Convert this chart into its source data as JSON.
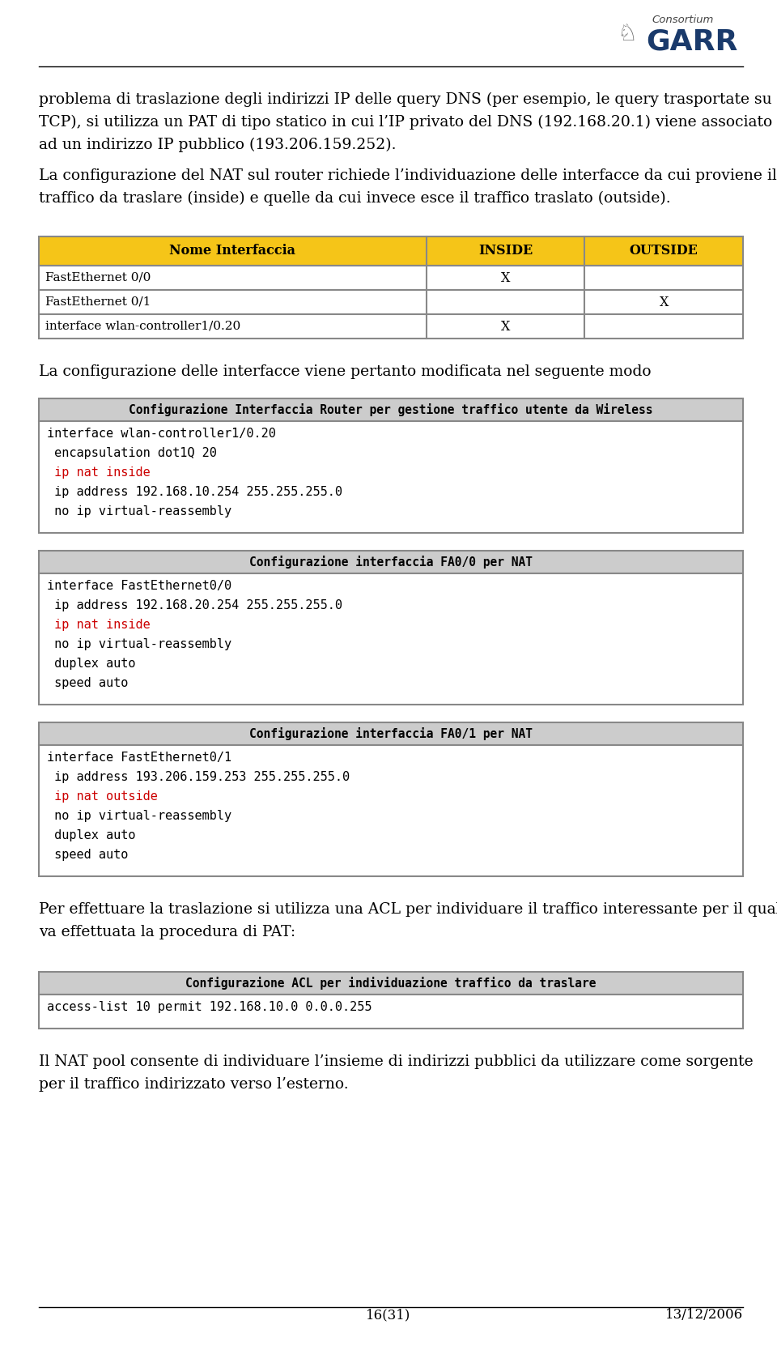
{
  "page_bg": "#ffffff",
  "text_color": "#000000",
  "red_color": "#cc0000",
  "header_bg": "#f5c518",
  "code_header_bg": "#cccccc",
  "body_text_1": "problema di traslazione degli indirizzi IP delle query DNS (per esempio, le query trasportate su TCP), si utilizza un PAT di tipo statico in cui l’IP privato del DNS (192.168.20.1) viene associato ad un indirizzo IP pubblico (193.206.159.252).",
  "body_text_2": "La configurazione del NAT sul router richiede l’individuazione delle interfacce da cui proviene il traffico da traslare (inside) e quelle da cui invece esce il traffico traslato (outside).",
  "table_headers": [
    "Nome Interfaccia",
    "INSIDE",
    "OUTSIDE"
  ],
  "table_rows": [
    [
      "FastEthernet 0/0",
      "X",
      ""
    ],
    [
      "FastEthernet 0/1",
      "",
      "X"
    ],
    [
      "interface wlan-controller1/0.20",
      "X",
      ""
    ]
  ],
  "middle_text": "La configurazione delle interfacce viene pertanto modificata nel seguente modo",
  "code_blocks": [
    {
      "title": "Configurazione Interfaccia Router per gestione traffico utente da Wireless",
      "lines": [
        {
          "text": "interface wlan-controller1/0.20",
          "color": "#000000"
        },
        {
          "text": " encapsulation dot1Q 20",
          "color": "#000000"
        },
        {
          "text": " ip nat inside",
          "color": "#cc0000"
        },
        {
          "text": " ip address 192.168.10.254 255.255.255.0",
          "color": "#000000"
        },
        {
          "text": " no ip virtual-reassembly",
          "color": "#000000"
        }
      ]
    },
    {
      "title": "Configurazione interfaccia FA0/0 per NAT",
      "lines": [
        {
          "text": "interface FastEthernet0/0",
          "color": "#000000"
        },
        {
          "text": " ip address 192.168.20.254 255.255.255.0",
          "color": "#000000"
        },
        {
          "text": " ip nat inside",
          "color": "#cc0000"
        },
        {
          "text": " no ip virtual-reassembly",
          "color": "#000000"
        },
        {
          "text": " duplex auto",
          "color": "#000000"
        },
        {
          "text": " speed auto",
          "color": "#000000"
        }
      ]
    },
    {
      "title": "Configurazione interfaccia FA0/1 per NAT",
      "lines": [
        {
          "text": "interface FastEthernet0/1",
          "color": "#000000"
        },
        {
          "text": " ip address 193.206.159.253 255.255.255.0",
          "color": "#000000"
        },
        {
          "text": " ip nat outside",
          "color": "#cc0000"
        },
        {
          "text": " no ip virtual-reassembly",
          "color": "#000000"
        },
        {
          "text": " duplex auto",
          "color": "#000000"
        },
        {
          "text": " speed auto",
          "color": "#000000"
        }
      ]
    }
  ],
  "after_code_text_1": "Per effettuare la traslazione si utilizza una ACL per individuare il traffico interessante per il quale",
  "after_code_text_2": "va effettuata la procedura di PAT:",
  "acl_block": {
    "title": "Configurazione ACL per individuazione traffico da traslare",
    "lines": [
      {
        "text": "access-list 10 permit 192.168.10.0 0.0.0.255",
        "color": "#000000"
      }
    ]
  },
  "final_text_1": "Il NAT pool consente di individuare l’insieme di indirizzi pubblici da utilizzare come sorgente",
  "final_text_2": "per il traffico indirizzato verso l’esterno.",
  "footer_left": "16(31)",
  "footer_right": "13/12/2006",
  "font_size_body": 13.5,
  "font_size_code": 11.0,
  "font_size_code_title": 10.5
}
